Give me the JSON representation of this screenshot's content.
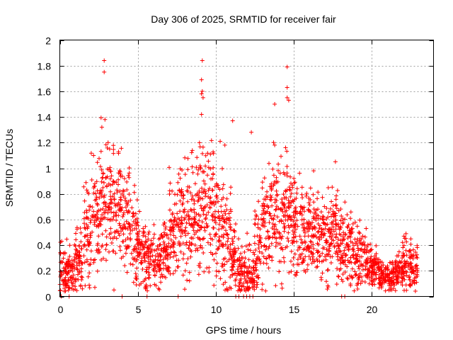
{
  "chart_data": {
    "type": "scatter",
    "title": "Day 306 of 2025, SRMTID for receiver fair",
    "xlabel": "GPS time / hours",
    "ylabel": "SRMTID / TECUs",
    "xlim": [
      0,
      24
    ],
    "ylim": [
      0,
      2
    ],
    "x_ticks": [
      0,
      5,
      10,
      15,
      20
    ],
    "x_tick_labels": [
      "0",
      "5",
      "10",
      "15",
      "20"
    ],
    "y_ticks": [
      0,
      0.2,
      0.4,
      0.6,
      0.8,
      1.0,
      1.2,
      1.4,
      1.6,
      1.8,
      2.0
    ],
    "y_tick_labels": [
      "0",
      "0.2",
      "0.4",
      "0.6",
      "0.8",
      "1",
      "1.2",
      "1.4",
      "1.6",
      "1.8",
      "2"
    ],
    "grid": true,
    "marker": "+",
    "series_color": "#ff0000",
    "cloud_profile": [
      [
        0.0,
        0.22,
        0.1
      ],
      [
        0.5,
        0.22,
        0.1
      ],
      [
        1.0,
        0.3,
        0.13
      ],
      [
        1.5,
        0.45,
        0.17
      ],
      [
        2.0,
        0.62,
        0.2
      ],
      [
        2.5,
        0.72,
        0.22
      ],
      [
        3.0,
        0.8,
        0.25
      ],
      [
        3.5,
        0.7,
        0.22
      ],
      [
        4.0,
        0.58,
        0.2
      ],
      [
        4.5,
        0.42,
        0.17
      ],
      [
        5.0,
        0.35,
        0.13
      ],
      [
        5.5,
        0.3,
        0.12
      ],
      [
        6.0,
        0.3,
        0.12
      ],
      [
        6.5,
        0.38,
        0.15
      ],
      [
        7.0,
        0.48,
        0.18
      ],
      [
        7.5,
        0.55,
        0.2
      ],
      [
        8.0,
        0.58,
        0.22
      ],
      [
        8.5,
        0.62,
        0.22
      ],
      [
        9.0,
        0.72,
        0.25
      ],
      [
        9.5,
        0.68,
        0.23
      ],
      [
        10.0,
        0.58,
        0.22
      ],
      [
        10.5,
        0.45,
        0.22
      ],
      [
        11.0,
        0.28,
        0.14
      ],
      [
        11.5,
        0.18,
        0.1
      ],
      [
        12.0,
        0.2,
        0.1
      ],
      [
        12.5,
        0.38,
        0.18
      ],
      [
        13.0,
        0.55,
        0.22
      ],
      [
        13.5,
        0.6,
        0.22
      ],
      [
        14.0,
        0.62,
        0.22
      ],
      [
        14.5,
        0.62,
        0.22
      ],
      [
        15.0,
        0.55,
        0.2
      ],
      [
        15.5,
        0.5,
        0.18
      ],
      [
        16.0,
        0.48,
        0.17
      ],
      [
        16.5,
        0.48,
        0.17
      ],
      [
        17.0,
        0.46,
        0.17
      ],
      [
        17.5,
        0.48,
        0.17
      ],
      [
        18.0,
        0.42,
        0.17
      ],
      [
        18.5,
        0.35,
        0.14
      ],
      [
        19.0,
        0.3,
        0.12
      ],
      [
        19.5,
        0.28,
        0.1
      ],
      [
        20.0,
        0.22,
        0.08
      ],
      [
        20.5,
        0.16,
        0.06
      ],
      [
        21.0,
        0.14,
        0.06
      ],
      [
        21.5,
        0.2,
        0.08
      ],
      [
        22.0,
        0.24,
        0.1
      ],
      [
        22.5,
        0.22,
        0.09
      ]
    ],
    "cloud_density": 55,
    "outliers": [
      [
        2.85,
        1.84
      ],
      [
        2.85,
        1.75
      ],
      [
        2.9,
        1.38
      ],
      [
        2.7,
        1.32
      ],
      [
        3.1,
        1.2
      ],
      [
        3.2,
        1.15
      ],
      [
        9.15,
        1.84
      ],
      [
        9.1,
        1.69
      ],
      [
        9.15,
        1.6
      ],
      [
        9.1,
        1.58
      ],
      [
        9.2,
        1.55
      ],
      [
        9.1,
        1.42
      ],
      [
        10.3,
        1.21
      ],
      [
        10.6,
        1.18
      ],
      [
        11.1,
        1.37
      ],
      [
        12.3,
        1.28
      ],
      [
        13.8,
        1.5
      ],
      [
        13.8,
        1.18
      ],
      [
        14.6,
        1.79
      ],
      [
        14.6,
        1.63
      ],
      [
        14.6,
        1.55
      ],
      [
        14.7,
        1.53
      ],
      [
        14.5,
        1.16
      ],
      [
        16.3,
        0.98
      ],
      [
        17.7,
        1.05
      ],
      [
        22.1,
        0.47
      ]
    ],
    "zero_markers": [
      [
        0.1,
        0
      ],
      [
        0.6,
        0
      ],
      [
        4.0,
        0
      ],
      [
        5.6,
        0
      ],
      [
        7.6,
        0
      ],
      [
        11.3,
        0
      ],
      [
        11.5,
        0
      ],
      [
        11.8,
        0
      ],
      [
        12.0,
        0
      ],
      [
        12.2,
        0
      ],
      [
        12.4,
        0
      ],
      [
        18.1,
        0
      ],
      [
        18.3,
        0
      ]
    ]
  }
}
